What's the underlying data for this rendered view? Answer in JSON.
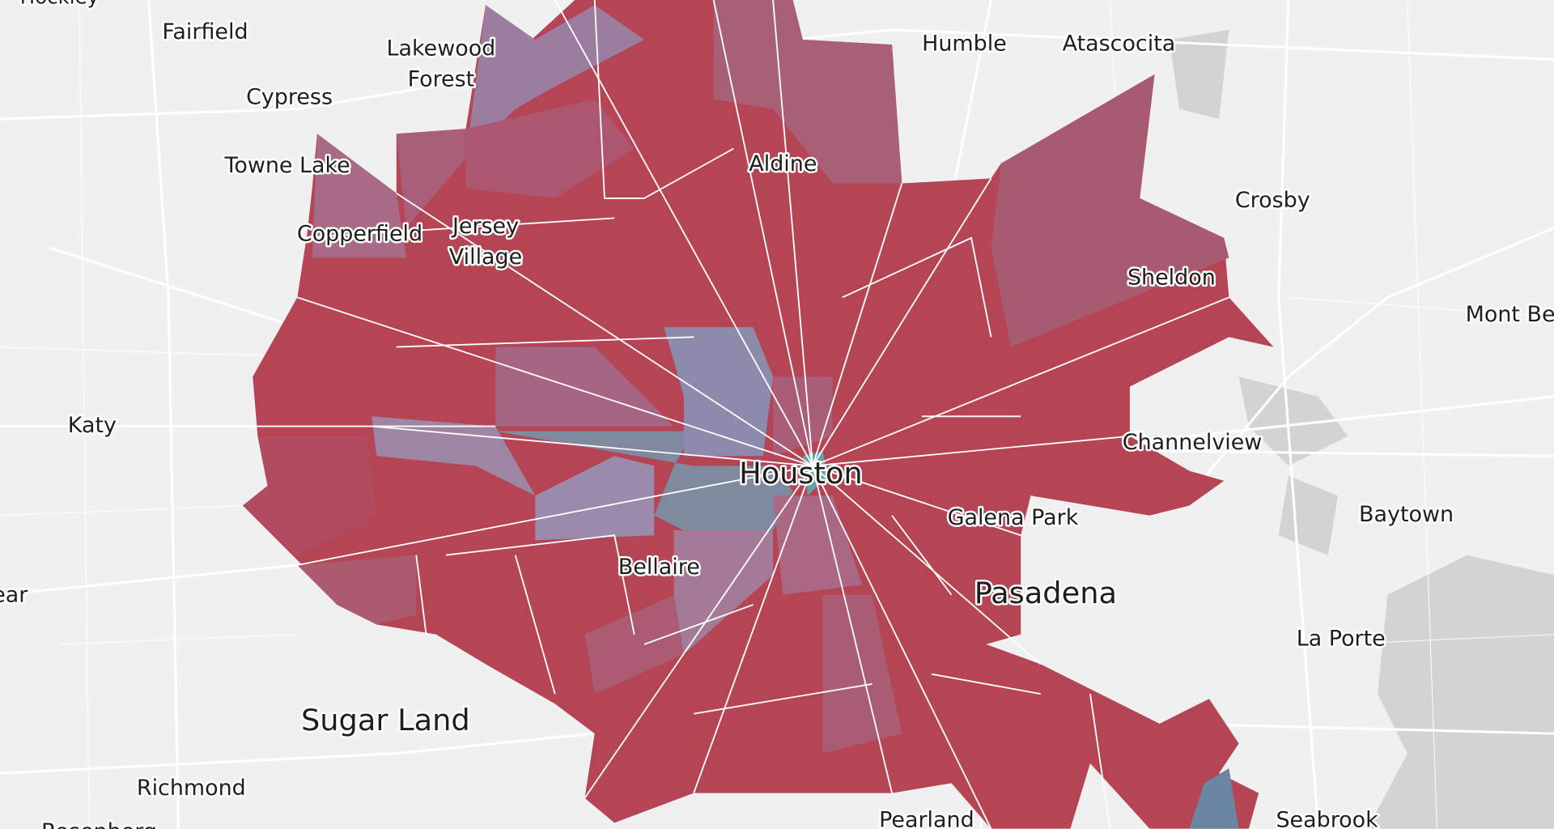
{
  "map": {
    "labels": [
      {
        "text": "Hockley"
      },
      {
        "text": "Fairfield"
      },
      {
        "text": "Lakewood"
      },
      {
        "text": "Forest"
      },
      {
        "text": "Cypress"
      },
      {
        "text": "Towne Lake"
      },
      {
        "text": "Copperfield"
      },
      {
        "text": "Jersey"
      },
      {
        "text": "Village"
      },
      {
        "text": "Humble"
      },
      {
        "text": "Atascocita"
      },
      {
        "text": "Aldine"
      },
      {
        "text": "Crosby"
      },
      {
        "text": "Sheldon"
      },
      {
        "text": "Mont Be"
      },
      {
        "text": "Katy"
      },
      {
        "text": "Channelview"
      },
      {
        "text": "Houston"
      },
      {
        "text": "Galena Park"
      },
      {
        "text": "Baytown"
      },
      {
        "text": "Bellaire"
      },
      {
        "text": "Pasadena"
      },
      {
        "text": "La Porte"
      },
      {
        "text": "Sugar Land"
      },
      {
        "text": "Richmond"
      },
      {
        "text": "Pearland"
      },
      {
        "text": "Seabrook"
      },
      {
        "text": "ear"
      },
      {
        "text": "Rosenberg"
      }
    ]
  }
}
